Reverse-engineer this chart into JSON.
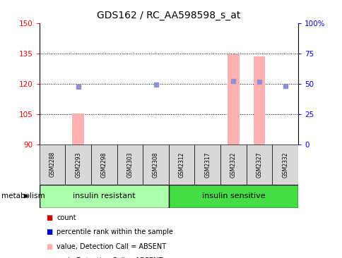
{
  "title": "GDS162 / RC_AA598598_s_at",
  "samples": [
    "GSM2288",
    "GSM2293",
    "GSM2298",
    "GSM2303",
    "GSM2308",
    "GSM2312",
    "GSM2317",
    "GSM2322",
    "GSM2327",
    "GSM2332"
  ],
  "group1_label": "insulin resistant",
  "group2_label": "insulin sensitive",
  "group1_count": 5,
  "group2_count": 5,
  "ylim_left": [
    90,
    150
  ],
  "yticks_left": [
    90,
    105,
    120,
    135,
    150
  ],
  "yticks_right": [
    0,
    25,
    50,
    75,
    100
  ],
  "ytick_right_labels": [
    "0",
    "25",
    "50",
    "75",
    "100%"
  ],
  "bar_values": [
    null,
    105.3,
    null,
    null,
    null,
    null,
    null,
    134.5,
    133.5,
    null
  ],
  "bar_base": 90,
  "dot_values": [
    null,
    118.5,
    null,
    null,
    119.5,
    null,
    null,
    121.5,
    121.0,
    119.0
  ],
  "bar_color": "#ffb0b0",
  "dot_color": "#9090d0",
  "legend_items": [
    {
      "color": "#cc0000",
      "label": "count"
    },
    {
      "color": "#0000cc",
      "label": "percentile rank within the sample"
    },
    {
      "color": "#ffb0b0",
      "label": "value, Detection Call = ABSENT"
    },
    {
      "color": "#9090d0",
      "label": "rank, Detection Call = ABSENT"
    }
  ],
  "group1_color": "#aaffaa",
  "group2_color": "#44dd44",
  "header_color": "#d8d8d8",
  "bg_color": "#ffffff",
  "title_fontsize": 10,
  "tick_fontsize": 7.5,
  "label_fontsize": 7,
  "sample_fontsize": 5.5,
  "group_fontsize": 8,
  "metabolism_fontsize": 7.5
}
